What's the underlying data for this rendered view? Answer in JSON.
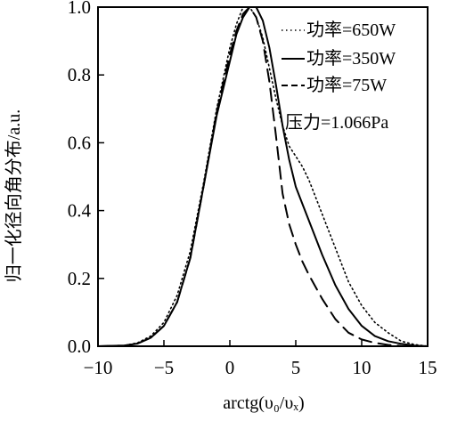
{
  "chart_data": {
    "type": "line",
    "title": "",
    "xlabel": "arctg(υ₀/υₓ)",
    "ylabel": "归一化径向角分布/a.u.",
    "xlim": [
      -10,
      15
    ],
    "ylim": [
      0,
      1.0
    ],
    "x_ticks": [
      "−10",
      "−5",
      "0",
      "5",
      "10",
      "15"
    ],
    "y_ticks": [
      "0.0",
      "0.2",
      "0.4",
      "0.6",
      "0.8",
      "1.0"
    ],
    "grid": false,
    "legend_position": "top-right",
    "annotation": "压力=1.066Pa",
    "series": [
      {
        "name": "功率=650W",
        "style": "dotted",
        "x": [
          -10,
          -8,
          -7,
          -6,
          -5,
          -4,
          -3,
          -2,
          -1,
          0,
          0.5,
          1,
          1.5,
          2,
          2.5,
          3,
          3.5,
          4,
          4.5,
          5,
          5.5,
          6,
          7,
          8,
          9,
          10,
          11,
          12,
          13,
          14,
          15
        ],
        "y": [
          0.0,
          0.002,
          0.01,
          0.03,
          0.07,
          0.15,
          0.28,
          0.48,
          0.7,
          0.88,
          0.95,
          1.0,
          1.0,
          0.97,
          0.91,
          0.82,
          0.73,
          0.65,
          0.59,
          0.56,
          0.53,
          0.49,
          0.39,
          0.29,
          0.19,
          0.12,
          0.07,
          0.04,
          0.015,
          0.005,
          0.0
        ]
      },
      {
        "name": "功率=350W",
        "style": "solid",
        "x": [
          -10,
          -8,
          -7,
          -6,
          -5,
          -4,
          -3,
          -2,
          -1,
          0,
          0.5,
          1,
          1.5,
          2,
          2.5,
          3,
          3.5,
          4,
          4.5,
          5,
          5.5,
          6,
          7,
          8,
          9,
          10,
          11,
          12,
          13,
          14,
          15
        ],
        "y": [
          0.0,
          0.002,
          0.008,
          0.025,
          0.06,
          0.13,
          0.26,
          0.47,
          0.68,
          0.84,
          0.92,
          0.97,
          1.0,
          1.0,
          0.96,
          0.88,
          0.77,
          0.65,
          0.55,
          0.47,
          0.42,
          0.37,
          0.27,
          0.18,
          0.11,
          0.06,
          0.03,
          0.015,
          0.007,
          0.002,
          0.0
        ]
      },
      {
        "name": "功率=75W",
        "style": "dashed",
        "x": [
          -10,
          -8,
          -7,
          -6,
          -5,
          -4,
          -3,
          -2,
          -1,
          0,
          0.5,
          1,
          1.5,
          2,
          2.5,
          3,
          3.5,
          4,
          4.5,
          5,
          5.5,
          6,
          7,
          8,
          9,
          10,
          11,
          12,
          13,
          14,
          15
        ],
        "y": [
          0.0,
          0.002,
          0.008,
          0.025,
          0.06,
          0.13,
          0.26,
          0.47,
          0.69,
          0.86,
          0.93,
          0.98,
          1.0,
          0.97,
          0.9,
          0.78,
          0.62,
          0.45,
          0.36,
          0.3,
          0.25,
          0.21,
          0.14,
          0.08,
          0.04,
          0.02,
          0.01,
          0.004,
          0.001,
          0.0,
          0.0
        ]
      }
    ]
  }
}
